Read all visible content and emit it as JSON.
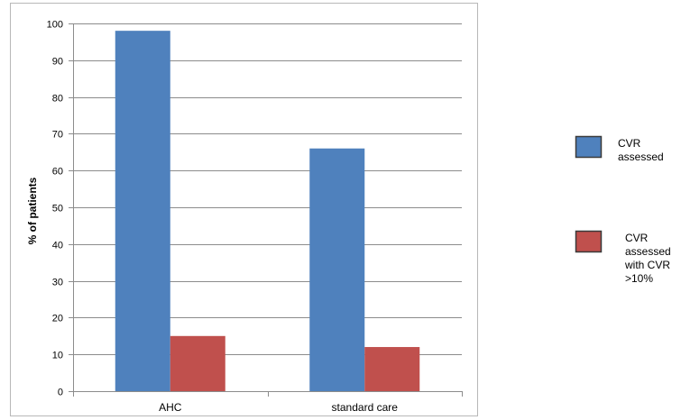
{
  "chart_data": {
    "type": "bar",
    "title": "",
    "xlabel": "",
    "ylabel": "% of patients",
    "categories": [
      "AHC",
      "standard care"
    ],
    "ylim": [
      0,
      100
    ],
    "yticks": [
      0,
      10,
      20,
      30,
      40,
      50,
      60,
      70,
      80,
      90,
      100
    ],
    "grid": true,
    "legend_position": "right",
    "series": [
      {
        "name": "CVR assessed",
        "legend_lines": [
          "CVR",
          "assessed"
        ],
        "color": "#4f81bd",
        "values": [
          98,
          66
        ]
      },
      {
        "name": "CVR assessed with CVR >10%",
        "legend_lines": [
          "CVR",
          "assessed",
          "with CVR",
          ">10%"
        ],
        "color": "#c0504d",
        "values": [
          15,
          12
        ]
      }
    ]
  }
}
